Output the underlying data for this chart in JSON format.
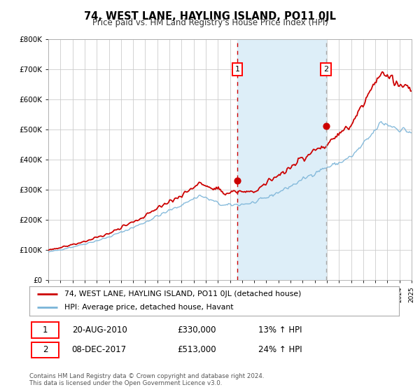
{
  "title": "74, WEST LANE, HAYLING ISLAND, PO11 0JL",
  "subtitle": "Price paid vs. HM Land Registry's House Price Index (HPI)",
  "ylim": [
    0,
    800000
  ],
  "yticks": [
    0,
    100000,
    200000,
    300000,
    400000,
    500000,
    600000,
    700000,
    800000
  ],
  "ytick_labels": [
    "£0",
    "£100K",
    "£200K",
    "£300K",
    "£400K",
    "£500K",
    "£600K",
    "£700K",
    "£800K"
  ],
  "hpi_color": "#7ab4d8",
  "price_color": "#cc0000",
  "sale1_date": 2010.63,
  "sale1_price": 330000,
  "sale2_date": 2017.92,
  "sale2_price": 513000,
  "legend_line1": "74, WEST LANE, HAYLING ISLAND, PO11 0JL (detached house)",
  "legend_line2": "HPI: Average price, detached house, Havant",
  "table_row1_date": "20-AUG-2010",
  "table_row1_price": "£330,000",
  "table_row1_hpi": "13% ↑ HPI",
  "table_row2_date": "08-DEC-2017",
  "table_row2_price": "£513,000",
  "table_row2_hpi": "24% ↑ HPI",
  "footnote1": "Contains HM Land Registry data © Crown copyright and database right 2024.",
  "footnote2": "This data is licensed under the Open Government Licence v3.0.",
  "background_color": "#ffffff",
  "grid_color": "#cccccc",
  "shade_color": "#ddeef8"
}
